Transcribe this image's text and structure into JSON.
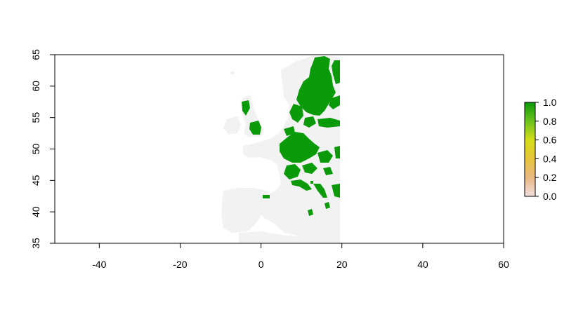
{
  "map": {
    "type": "raster",
    "xlim": [
      -51,
      60
    ],
    "ylim": [
      35,
      65
    ],
    "x_ticks": [
      -40,
      -20,
      0,
      20,
      40,
      60
    ],
    "y_ticks": [
      35,
      40,
      45,
      50,
      55,
      60,
      65
    ],
    "x_tick_labels": [
      "-40",
      "-20",
      "0",
      "20",
      "40",
      "60"
    ],
    "y_tick_labels": [
      "35",
      "40",
      "45",
      "50",
      "55",
      "60",
      "65"
    ],
    "raster_extent": {
      "lon_min": -10,
      "lon_max": 20,
      "lat_min": 35,
      "lat_max": 65
    },
    "colors": {
      "land_background": "#f2f2f2",
      "presence": "#0a9a0a",
      "frame": "#000000"
    }
  },
  "legend": {
    "ticks": [
      0.0,
      0.2,
      0.4,
      0.6,
      0.8,
      1.0
    ],
    "tick_labels": [
      "0.0",
      "0.2",
      "0.4",
      "0.6",
      "0.8",
      "1.0"
    ],
    "color_stops": [
      "#f1dede",
      "#e9b883",
      "#e8c53a",
      "#d4dc18",
      "#6cc21b",
      "#0a9a0a"
    ]
  }
}
